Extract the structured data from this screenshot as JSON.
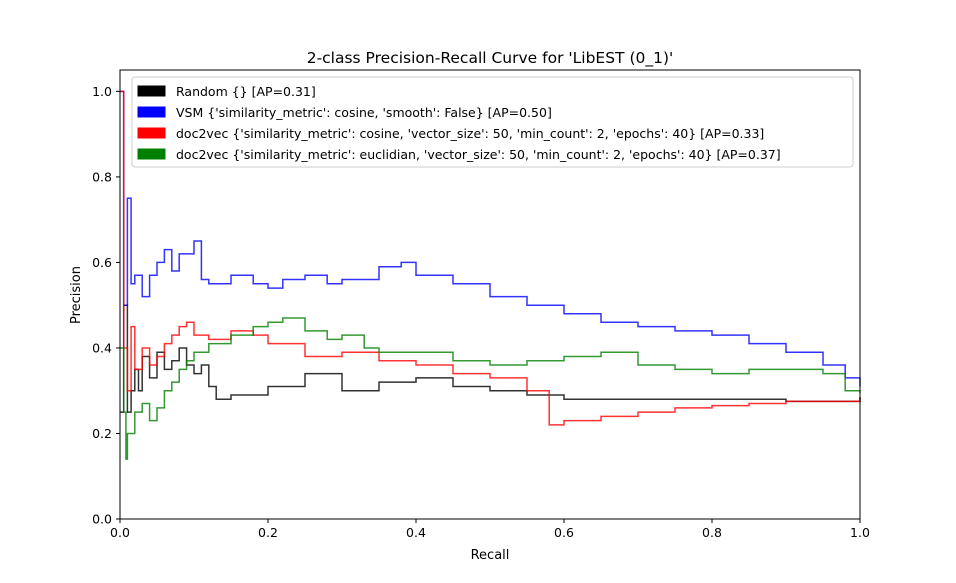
{
  "chart_data": {
    "type": "line",
    "title": "2-class Precision-Recall Curve for 'LibEST (0_1)'",
    "xlabel": "Recall",
    "ylabel": "Precision",
    "xlim": [
      0.0,
      1.0
    ],
    "ylim": [
      0.0,
      1.05
    ],
    "xticks": [
      "0.0",
      "0.2",
      "0.4",
      "0.6",
      "0.8",
      "1.0"
    ],
    "yticks": [
      "0.0",
      "0.2",
      "0.4",
      "0.6",
      "0.8",
      "1.0"
    ],
    "grid": false,
    "legend_position": "top-left",
    "step": true,
    "series": [
      {
        "name": "Random {} [AP=0.31]",
        "color": "#000000",
        "points": [
          [
            0.0,
            0.25
          ],
          [
            0.005,
            0.5
          ],
          [
            0.01,
            0.25
          ],
          [
            0.015,
            0.3
          ],
          [
            0.02,
            0.35
          ],
          [
            0.025,
            0.3
          ],
          [
            0.03,
            0.38
          ],
          [
            0.04,
            0.33
          ],
          [
            0.05,
            0.39
          ],
          [
            0.06,
            0.35
          ],
          [
            0.07,
            0.37
          ],
          [
            0.08,
            0.4
          ],
          [
            0.09,
            0.36
          ],
          [
            0.1,
            0.34
          ],
          [
            0.11,
            0.36
          ],
          [
            0.12,
            0.31
          ],
          [
            0.13,
            0.28
          ],
          [
            0.15,
            0.29
          ],
          [
            0.2,
            0.31
          ],
          [
            0.25,
            0.34
          ],
          [
            0.3,
            0.3
          ],
          [
            0.35,
            0.32
          ],
          [
            0.4,
            0.33
          ],
          [
            0.45,
            0.31
          ],
          [
            0.5,
            0.3
          ],
          [
            0.55,
            0.29
          ],
          [
            0.6,
            0.28
          ],
          [
            0.7,
            0.28
          ],
          [
            0.8,
            0.28
          ],
          [
            0.9,
            0.275
          ],
          [
            1.0,
            0.285
          ]
        ]
      },
      {
        "name": "VSM {'similarity_metric': cosine, 'smooth': False} [AP=0.50]",
        "color": "#0000ff",
        "points": [
          [
            0.0,
            1.0
          ],
          [
            0.005,
            0.5
          ],
          [
            0.01,
            0.75
          ],
          [
            0.015,
            0.55
          ],
          [
            0.02,
            0.57
          ],
          [
            0.03,
            0.52
          ],
          [
            0.04,
            0.57
          ],
          [
            0.05,
            0.6
          ],
          [
            0.06,
            0.63
          ],
          [
            0.07,
            0.58
          ],
          [
            0.08,
            0.62
          ],
          [
            0.1,
            0.65
          ],
          [
            0.11,
            0.56
          ],
          [
            0.12,
            0.55
          ],
          [
            0.15,
            0.57
          ],
          [
            0.18,
            0.55
          ],
          [
            0.2,
            0.54
          ],
          [
            0.22,
            0.56
          ],
          [
            0.25,
            0.57
          ],
          [
            0.28,
            0.55
          ],
          [
            0.3,
            0.56
          ],
          [
            0.35,
            0.59
          ],
          [
            0.38,
            0.6
          ],
          [
            0.4,
            0.57
          ],
          [
            0.45,
            0.55
          ],
          [
            0.5,
            0.52
          ],
          [
            0.55,
            0.5
          ],
          [
            0.6,
            0.48
          ],
          [
            0.65,
            0.46
          ],
          [
            0.7,
            0.45
          ],
          [
            0.75,
            0.44
          ],
          [
            0.8,
            0.43
          ],
          [
            0.85,
            0.41
          ],
          [
            0.9,
            0.39
          ],
          [
            0.95,
            0.36
          ],
          [
            0.98,
            0.33
          ],
          [
            1.0,
            0.31
          ]
        ]
      },
      {
        "name": "doc2vec {'similarity_metric': cosine, 'vector_size': 50, 'min_count': 2, 'epochs': 40} [AP=0.33]",
        "color": "#ff0000",
        "points": [
          [
            0.0,
            1.0
          ],
          [
            0.005,
            0.4
          ],
          [
            0.01,
            0.3
          ],
          [
            0.015,
            0.45
          ],
          [
            0.02,
            0.35
          ],
          [
            0.03,
            0.4
          ],
          [
            0.04,
            0.36
          ],
          [
            0.05,
            0.38
          ],
          [
            0.06,
            0.41
          ],
          [
            0.07,
            0.43
          ],
          [
            0.08,
            0.45
          ],
          [
            0.09,
            0.46
          ],
          [
            0.1,
            0.43
          ],
          [
            0.12,
            0.42
          ],
          [
            0.15,
            0.44
          ],
          [
            0.18,
            0.43
          ],
          [
            0.2,
            0.41
          ],
          [
            0.25,
            0.38
          ],
          [
            0.3,
            0.39
          ],
          [
            0.35,
            0.37
          ],
          [
            0.4,
            0.36
          ],
          [
            0.45,
            0.34
          ],
          [
            0.5,
            0.33
          ],
          [
            0.55,
            0.3
          ],
          [
            0.58,
            0.22
          ],
          [
            0.6,
            0.23
          ],
          [
            0.65,
            0.24
          ],
          [
            0.7,
            0.25
          ],
          [
            0.75,
            0.26
          ],
          [
            0.8,
            0.265
          ],
          [
            0.85,
            0.27
          ],
          [
            0.9,
            0.275
          ],
          [
            1.0,
            0.285
          ]
        ]
      },
      {
        "name": "doc2vec {'similarity_metric': euclidian, 'vector_size': 50, 'min_count': 2, 'epochs': 40} [AP=0.37]",
        "color": "#008000",
        "points": [
          [
            0.0,
            0.4
          ],
          [
            0.005,
            0.25
          ],
          [
            0.008,
            0.14
          ],
          [
            0.01,
            0.2
          ],
          [
            0.02,
            0.25
          ],
          [
            0.03,
            0.27
          ],
          [
            0.04,
            0.23
          ],
          [
            0.05,
            0.26
          ],
          [
            0.06,
            0.3
          ],
          [
            0.07,
            0.32
          ],
          [
            0.08,
            0.35
          ],
          [
            0.09,
            0.37
          ],
          [
            0.1,
            0.39
          ],
          [
            0.12,
            0.41
          ],
          [
            0.15,
            0.43
          ],
          [
            0.18,
            0.45
          ],
          [
            0.2,
            0.46
          ],
          [
            0.22,
            0.47
          ],
          [
            0.25,
            0.44
          ],
          [
            0.28,
            0.42
          ],
          [
            0.3,
            0.43
          ],
          [
            0.33,
            0.4
          ],
          [
            0.35,
            0.39
          ],
          [
            0.4,
            0.39
          ],
          [
            0.45,
            0.37
          ],
          [
            0.5,
            0.36
          ],
          [
            0.55,
            0.37
          ],
          [
            0.6,
            0.38
          ],
          [
            0.65,
            0.39
          ],
          [
            0.7,
            0.36
          ],
          [
            0.75,
            0.35
          ],
          [
            0.8,
            0.34
          ],
          [
            0.85,
            0.35
          ],
          [
            0.9,
            0.35
          ],
          [
            0.95,
            0.34
          ],
          [
            0.98,
            0.3
          ],
          [
            1.0,
            0.295
          ]
        ]
      }
    ]
  }
}
